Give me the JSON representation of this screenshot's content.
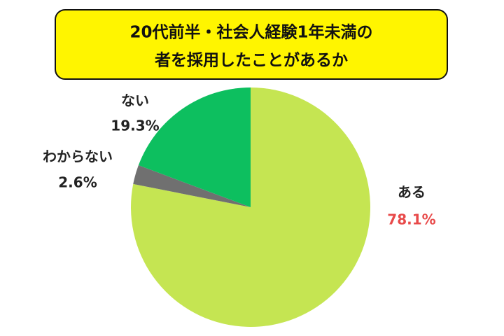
{
  "chart_data": {
    "type": "pie",
    "title": [
      "20代前半・社会人経験1年未満の",
      "者を採用したことがあるか"
    ],
    "categories": [
      "ある",
      "わからない",
      "ない"
    ],
    "values": [
      78.1,
      2.6,
      19.3
    ],
    "value_labels": [
      "78.1%",
      "2.6%",
      "19.3%"
    ],
    "colors": [
      "#c5e552",
      "#707070",
      "#0dbf5f"
    ],
    "value_label_colors": [
      "#e84a4a",
      "#222222",
      "#222222"
    ]
  }
}
